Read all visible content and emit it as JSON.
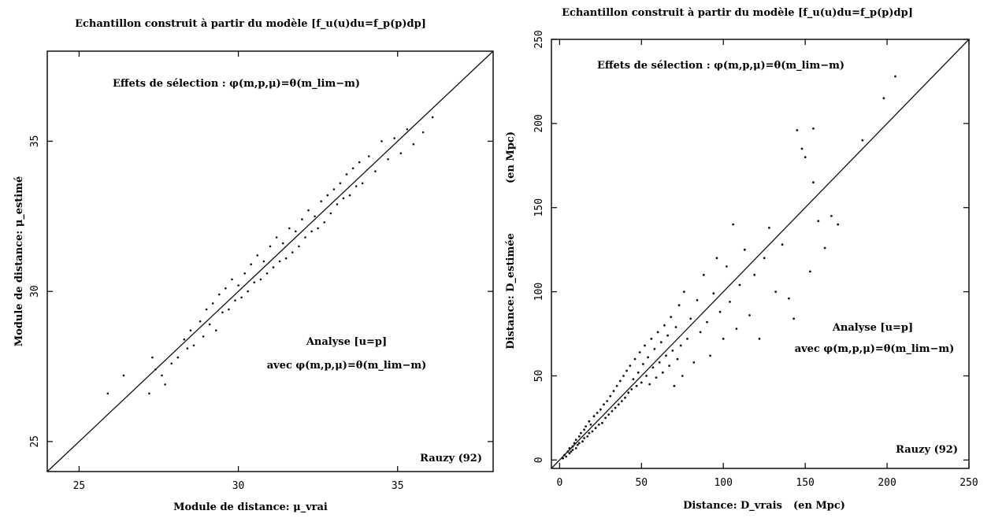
{
  "chart_data": [
    {
      "type": "scatter",
      "title": "Echantillon construit à partir du modèle [f_u(u)du=f_p(p)dp]",
      "annotation_top": "Effets de sélection : φ(m,p,μ)=θ(m_lim−m)",
      "annotation_mid_1": "Analyse [u=p]",
      "annotation_mid_2": "avec φ(m,p,μ)=θ(m_lim−m)",
      "credit": "Rauzy (92)",
      "xlabel": "Module de distance: μ_vrai",
      "ylabel": "Module de distance: μ_estimé",
      "xlim": [
        24,
        38
      ],
      "ylim": [
        24,
        38
      ],
      "xticks": [
        "25",
        "30",
        "35"
      ],
      "yticks": [
        "25",
        "30",
        "35"
      ],
      "reference_line": "y = x",
      "grid": false,
      "series": [
        {
          "points": [
            [
              25.9,
              26.6
            ],
            [
              26.4,
              27.2
            ],
            [
              27.2,
              26.6
            ],
            [
              27.3,
              27.8
            ],
            [
              27.4,
              27.4
            ],
            [
              27.6,
              27.2
            ],
            [
              27.7,
              26.9
            ],
            [
              27.9,
              27.6
            ],
            [
              28.1,
              27.8
            ],
            [
              28.3,
              28.4
            ],
            [
              28.4,
              28.1
            ],
            [
              28.5,
              28.7
            ],
            [
              28.6,
              28.2
            ],
            [
              28.8,
              29.0
            ],
            [
              28.9,
              28.5
            ],
            [
              29.0,
              29.4
            ],
            [
              29.1,
              28.9
            ],
            [
              29.2,
              29.6
            ],
            [
              29.3,
              28.7
            ],
            [
              29.4,
              29.9
            ],
            [
              29.5,
              29.3
            ],
            [
              29.6,
              30.1
            ],
            [
              29.7,
              29.4
            ],
            [
              29.8,
              30.4
            ],
            [
              29.9,
              29.7
            ],
            [
              30.0,
              30.2
            ],
            [
              30.1,
              29.8
            ],
            [
              30.2,
              30.6
            ],
            [
              30.3,
              30.0
            ],
            [
              30.4,
              30.9
            ],
            [
              30.5,
              30.3
            ],
            [
              30.6,
              31.2
            ],
            [
              30.7,
              30.4
            ],
            [
              30.8,
              31.0
            ],
            [
              30.9,
              30.6
            ],
            [
              31.0,
              31.5
            ],
            [
              31.1,
              30.8
            ],
            [
              31.2,
              31.8
            ],
            [
              31.3,
              31.0
            ],
            [
              31.4,
              31.6
            ],
            [
              31.5,
              31.1
            ],
            [
              31.6,
              32.1
            ],
            [
              31.7,
              31.3
            ],
            [
              31.8,
              32.0
            ],
            [
              31.9,
              31.5
            ],
            [
              32.0,
              32.4
            ],
            [
              32.1,
              31.8
            ],
            [
              32.2,
              32.7
            ],
            [
              32.3,
              32.0
            ],
            [
              32.4,
              32.5
            ],
            [
              32.5,
              32.1
            ],
            [
              32.6,
              33.0
            ],
            [
              32.7,
              32.3
            ],
            [
              32.8,
              33.2
            ],
            [
              32.9,
              32.6
            ],
            [
              33.0,
              33.4
            ],
            [
              33.1,
              32.9
            ],
            [
              33.2,
              33.6
            ],
            [
              33.3,
              33.1
            ],
            [
              33.4,
              33.9
            ],
            [
              33.5,
              33.2
            ],
            [
              33.6,
              34.1
            ],
            [
              33.7,
              33.5
            ],
            [
              33.8,
              34.3
            ],
            [
              33.9,
              33.6
            ],
            [
              34.1,
              34.5
            ],
            [
              34.3,
              34.0
            ],
            [
              34.5,
              35.0
            ],
            [
              34.7,
              34.4
            ],
            [
              34.9,
              35.1
            ],
            [
              35.1,
              34.6
            ],
            [
              35.3,
              35.4
            ],
            [
              35.5,
              34.9
            ],
            [
              35.8,
              35.3
            ],
            [
              36.1,
              35.8
            ]
          ]
        }
      ]
    },
    {
      "type": "scatter",
      "title": "Echantillon construit à partir du modèle [f_u(u)du=f_p(p)dp]",
      "annotation_top": "Effets de sélection : φ(m,p,μ)=θ(m_lim−m)",
      "annotation_mid_1": "Analyse [u=p]",
      "annotation_mid_2": "avec φ(m,p,μ)=θ(m_lim−m)",
      "credit": "Rauzy (92)",
      "xlabel": "Distance: D_vrais",
      "xlabel_unit": "(en Mpc)",
      "ylabel": "Distance: D_estimée",
      "ylabel_unit": "(en Mpc)",
      "xlim": [
        -5,
        250
      ],
      "ylim": [
        -5,
        250
      ],
      "xticks": [
        "0",
        "50",
        "100",
        "150",
        "200",
        "250"
      ],
      "yticks": [
        "0",
        "50",
        "100",
        "150",
        "200",
        "250"
      ],
      "reference_line": "y = x",
      "grid": false,
      "series": [
        {
          "points": [
            [
              2,
              1
            ],
            [
              3,
              3
            ],
            [
              4,
              2
            ],
            [
              5,
              5
            ],
            [
              6,
              4
            ],
            [
              6,
              7
            ],
            [
              7,
              5
            ],
            [
              8,
              8
            ],
            [
              8,
              6
            ],
            [
              9,
              10
            ],
            [
              10,
              7
            ],
            [
              10,
              12
            ],
            [
              11,
              9
            ],
            [
              12,
              14
            ],
            [
              12,
              10
            ],
            [
              13,
              16
            ],
            [
              14,
              11
            ],
            [
              15,
              18
            ],
            [
              15,
              13
            ],
            [
              16,
              20
            ],
            [
              17,
              14
            ],
            [
              18,
              23
            ],
            [
              18,
              16
            ],
            [
              19,
              21
            ],
            [
              20,
              17
            ],
            [
              21,
              26
            ],
            [
              22,
              19
            ],
            [
              23,
              28
            ],
            [
              24,
              21
            ],
            [
              25,
              30
            ],
            [
              26,
              22
            ],
            [
              27,
              33
            ],
            [
              28,
              25
            ],
            [
              29,
              35
            ],
            [
              30,
              27
            ],
            [
              31,
              38
            ],
            [
              32,
              29
            ],
            [
              33,
              41
            ],
            [
              34,
              31
            ],
            [
              35,
              44
            ],
            [
              36,
              33
            ],
            [
              37,
              47
            ],
            [
              38,
              35
            ],
            [
              39,
              50
            ],
            [
              40,
              37
            ],
            [
              41,
              53
            ],
            [
              42,
              40
            ],
            [
              43,
              56
            ],
            [
              44,
              42
            ],
            [
              45,
              48
            ],
            [
              46,
              60
            ],
            [
              47,
              44
            ],
            [
              48,
              52
            ],
            [
              49,
              64
            ],
            [
              50,
              46
            ],
            [
              51,
              57
            ],
            [
              52,
              68
            ],
            [
              53,
              50
            ],
            [
              54,
              61
            ],
            [
              55,
              45
            ],
            [
              56,
              72
            ],
            [
              57,
              55
            ],
            [
              58,
              66
            ],
            [
              59,
              49
            ],
            [
              60,
              76
            ],
            [
              61,
              58
            ],
            [
              62,
              70
            ],
            [
              63,
              52
            ],
            [
              64,
              80
            ],
            [
              65,
              62
            ],
            [
              66,
              74
            ],
            [
              67,
              56
            ],
            [
              68,
              85
            ],
            [
              69,
              65
            ],
            [
              70,
              44
            ],
            [
              71,
              79
            ],
            [
              72,
              60
            ],
            [
              73,
              92
            ],
            [
              74,
              68
            ],
            [
              75,
              50
            ],
            [
              76,
              100
            ],
            [
              78,
              72
            ],
            [
              80,
              84
            ],
            [
              82,
              58
            ],
            [
              84,
              95
            ],
            [
              86,
              76
            ],
            [
              88,
              110
            ],
            [
              90,
              82
            ],
            [
              92,
              62
            ],
            [
              94,
              99
            ],
            [
              96,
              120
            ],
            [
              98,
              88
            ],
            [
              100,
              72
            ],
            [
              102,
              115
            ],
            [
              104,
              94
            ],
            [
              106,
              140
            ],
            [
              108,
              78
            ],
            [
              110,
              104
            ],
            [
              113,
              125
            ],
            [
              116,
              86
            ],
            [
              119,
              110
            ],
            [
              122,
              72
            ],
            [
              125,
              120
            ],
            [
              128,
              138
            ],
            [
              132,
              100
            ],
            [
              136,
              128
            ],
            [
              140,
              96
            ],
            [
              143,
              84
            ],
            [
              145,
              196
            ],
            [
              148,
              185
            ],
            [
              150,
              180
            ],
            [
              153,
              112
            ],
            [
              155,
              165
            ],
            [
              155,
              197
            ],
            [
              158,
              142
            ],
            [
              162,
              126
            ],
            [
              166,
              145
            ],
            [
              170,
              140
            ],
            [
              185,
              190
            ],
            [
              198,
              215
            ],
            [
              205,
              228
            ]
          ]
        }
      ]
    }
  ]
}
